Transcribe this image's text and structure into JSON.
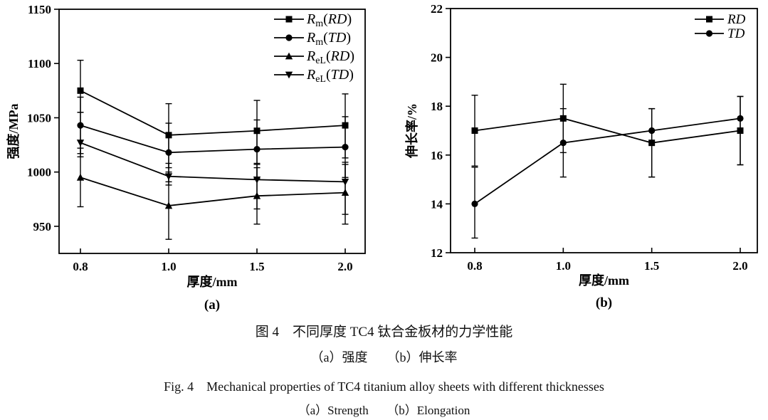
{
  "figure": {
    "captions": {
      "zh_title": "图 4　不同厚度 TC4 钛合金板材的力学性能",
      "zh_subtitle": "（a）强度　　（b）伸长率",
      "en_title": "Fig. 4　Mechanical properties of TC4 titanium alloy sheets with different thicknesses",
      "en_subtitle": "（a）Strength　　（b）Elongation"
    },
    "ink_color": "#000000",
    "background_color": "#ffffff"
  },
  "chart_data": [
    {
      "id": "strength",
      "type": "line",
      "panel_label": "(a)",
      "xlabel": "厚度/mm",
      "ylabel": "强度/MPa",
      "categories": [
        "0.8",
        "1.0",
        "1.5",
        "2.0"
      ],
      "ylim": [
        925,
        1150
      ],
      "yticks": [
        950,
        1000,
        1050,
        1100,
        1150
      ],
      "grid": false,
      "legend_position": "top-right-inside",
      "series": [
        {
          "name": "Rm(RD)",
          "legend": {
            "base": "R",
            "sub": "m",
            "arg": "RD"
          },
          "marker": "square",
          "values": [
            1075,
            1034,
            1038,
            1043
          ],
          "err_plus": [
            28,
            29,
            28,
            29
          ],
          "err_minus": [
            20,
            30,
            30,
            30
          ]
        },
        {
          "name": "Rm(TD)",
          "legend": {
            "base": "R",
            "sub": "m",
            "arg": "TD"
          },
          "marker": "circle",
          "values": [
            1043,
            1018,
            1021,
            1023
          ],
          "err_plus": [
            26,
            27,
            27,
            28
          ],
          "err_minus": [
            26,
            27,
            27,
            28
          ]
        },
        {
          "name": "ReL(RD)",
          "legend": {
            "base": "R",
            "sub": "eL",
            "arg": "RD"
          },
          "marker": "triangle-up",
          "values": [
            995,
            969,
            978,
            981
          ],
          "err_plus": [
            27,
            31,
            26,
            28
          ],
          "err_minus": [
            27,
            31,
            26,
            29
          ]
        },
        {
          "name": "ReL(TD)",
          "legend": {
            "base": "R",
            "sub": "eL",
            "arg": "TD"
          },
          "marker": "triangle-down",
          "values": [
            1027,
            996,
            993,
            991
          ],
          "err_plus": [
            28,
            12,
            14,
            16
          ],
          "err_minus": [
            13,
            8,
            27,
            30
          ]
        }
      ]
    },
    {
      "id": "elongation",
      "type": "line",
      "panel_label": "(b)",
      "xlabel": "厚度/mm",
      "ylabel": "伸长率/%",
      "categories": [
        "0.8",
        "1.0",
        "1.5",
        "2.0"
      ],
      "ylim": [
        12,
        22
      ],
      "yticks": [
        12,
        14,
        16,
        18,
        20,
        22
      ],
      "grid": false,
      "legend_position": "top-right-inside",
      "series": [
        {
          "name": "RD",
          "marker": "square",
          "values": [
            17.0,
            17.5,
            16.5,
            17.0
          ],
          "err_plus": [
            1.45,
            1.4,
            1.4,
            1.4
          ],
          "err_minus": [
            1.45,
            1.4,
            1.4,
            1.4
          ]
        },
        {
          "name": "TD",
          "marker": "circle",
          "values": [
            14.0,
            16.5,
            17.0,
            17.5
          ],
          "err_plus": [
            1.5,
            1.4,
            0.9,
            0.9
          ],
          "err_minus": [
            1.4,
            1.4,
            1.9,
            1.9
          ]
        }
      ]
    }
  ]
}
